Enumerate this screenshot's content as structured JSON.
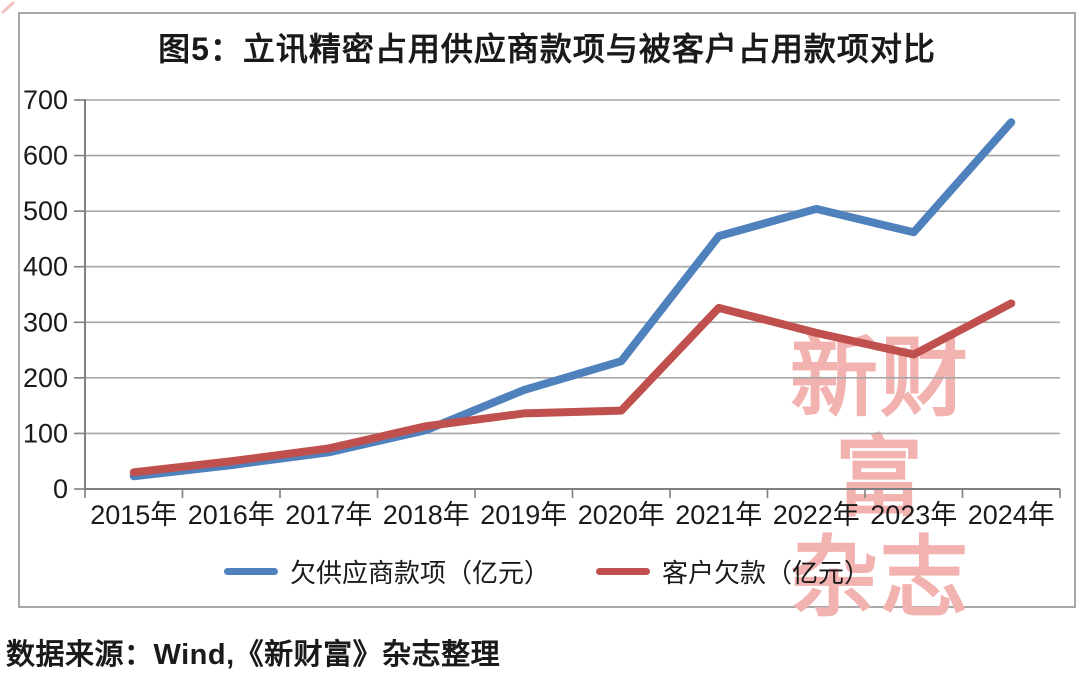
{
  "chart_data": {
    "type": "line",
    "title": "图5：立讯精密占用供应商款项与被客户占用款项对比",
    "categories": [
      "2015年",
      "2016年",
      "2017年",
      "2018年",
      "2019年",
      "2020年",
      "2021年",
      "2022年",
      "2023年",
      "2024年"
    ],
    "series": [
      {
        "name": "欠供应商款项（亿元）",
        "color": "#4f81bd",
        "values": [
          23,
          43,
          66,
          106,
          178,
          230,
          455,
          504,
          462,
          660
        ]
      },
      {
        "name": "客户欠款（亿元）",
        "color": "#c0504d",
        "values": [
          30,
          50,
          73,
          113,
          136,
          141,
          326,
          281,
          242,
          334
        ]
      }
    ],
    "xlabel": "",
    "ylabel": "",
    "ylim": [
      0,
      700
    ],
    "ytick_step": 100,
    "yticks": [
      0,
      100,
      200,
      300,
      400,
      500,
      600,
      700
    ],
    "grid": true,
    "legend_position": "bottom"
  },
  "figure": {
    "source": "数据来源：Wind,《新财富》杂志整理",
    "watermark": {
      "line1": "新财富",
      "line2": "杂志",
      "color": "#f2b3b0"
    }
  },
  "colors": {
    "grid": "#a6a6a6",
    "axis": "#7f7f7f",
    "text": "#1a1a1a",
    "frame_border": "#a8a8a8",
    "background": "#ffffff"
  }
}
